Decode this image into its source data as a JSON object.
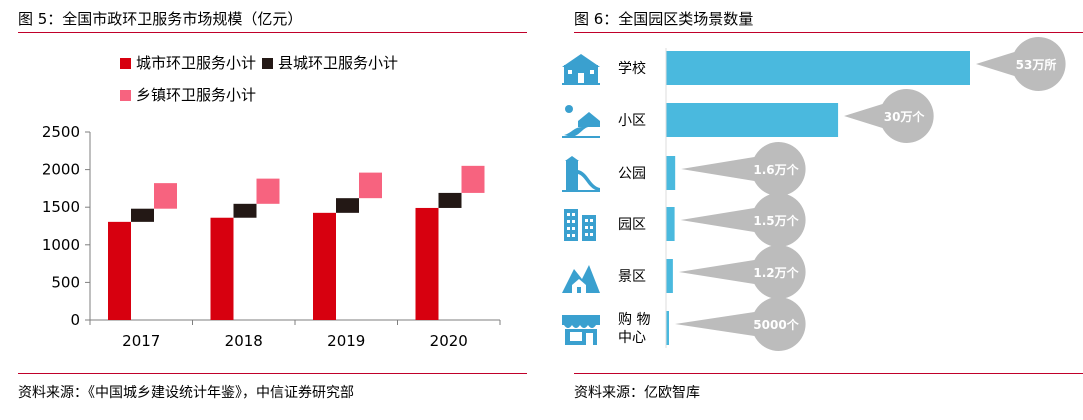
{
  "figures": [
    {
      "title": "图 5：全国市政环卫服务市场规模（亿元）",
      "source": "资料来源：《中国城乡建设统计年鉴》，中信证券研究部"
    },
    {
      "title": "图 6：全国园区类场景数量",
      "source": "资料来源：亿欧智库"
    }
  ],
  "chart_data": [
    {
      "type": "bar",
      "title": "全国市政环卫服务市场规模（亿元）",
      "categories": [
        "2017",
        "2018",
        "2019",
        "2020"
      ],
      "series": [
        {
          "name": "城市环卫服务小计",
          "color": "#d7000f",
          "low": [
            0,
            0,
            0,
            0
          ],
          "high": [
            1305,
            1360,
            1425,
            1490
          ]
        },
        {
          "name": "县城环卫服务小计",
          "color": "#231815",
          "low": [
            1305,
            1360,
            1425,
            1490
          ],
          "high": [
            1480,
            1545,
            1620,
            1690
          ]
        },
        {
          "name": "乡镇环卫服务小计",
          "color": "#f7637f",
          "low": [
            1480,
            1545,
            1620,
            1690
          ],
          "high": [
            1820,
            1880,
            1960,
            2050
          ]
        }
      ],
      "ylim": [
        0,
        2500
      ],
      "yticks": [
        0,
        500,
        1000,
        1500,
        2000,
        2500
      ],
      "grid": false,
      "legend": "top-left"
    },
    {
      "type": "bar",
      "orientation": "horizontal",
      "title": "全国园区类场景数量",
      "categories": [
        "学校",
        "小区",
        "公园",
        "园区",
        "景区",
        "购物中心"
      ],
      "category_display": [
        [
          "学校"
        ],
        [
          "小区"
        ],
        [
          "公园"
        ],
        [
          "园区"
        ],
        [
          "景区"
        ],
        [
          "购 物",
          "中心"
        ]
      ],
      "icons": [
        "school-icon",
        "residential-icon",
        "park-icon",
        "industrial-park-icon",
        "scenic-area-icon",
        "shopping-mall-icon"
      ],
      "values": [
        530000,
        300000,
        16000,
        15000,
        12000,
        5000
      ],
      "value_labels": [
        "53万所",
        "30万个",
        "1.6万个",
        "1.5万个",
        "1.2万个",
        "5000个"
      ],
      "bar_color": "#4ab9de",
      "bubble_color": "#bcbcbc",
      "icon_color": "#3aa0cf"
    }
  ]
}
